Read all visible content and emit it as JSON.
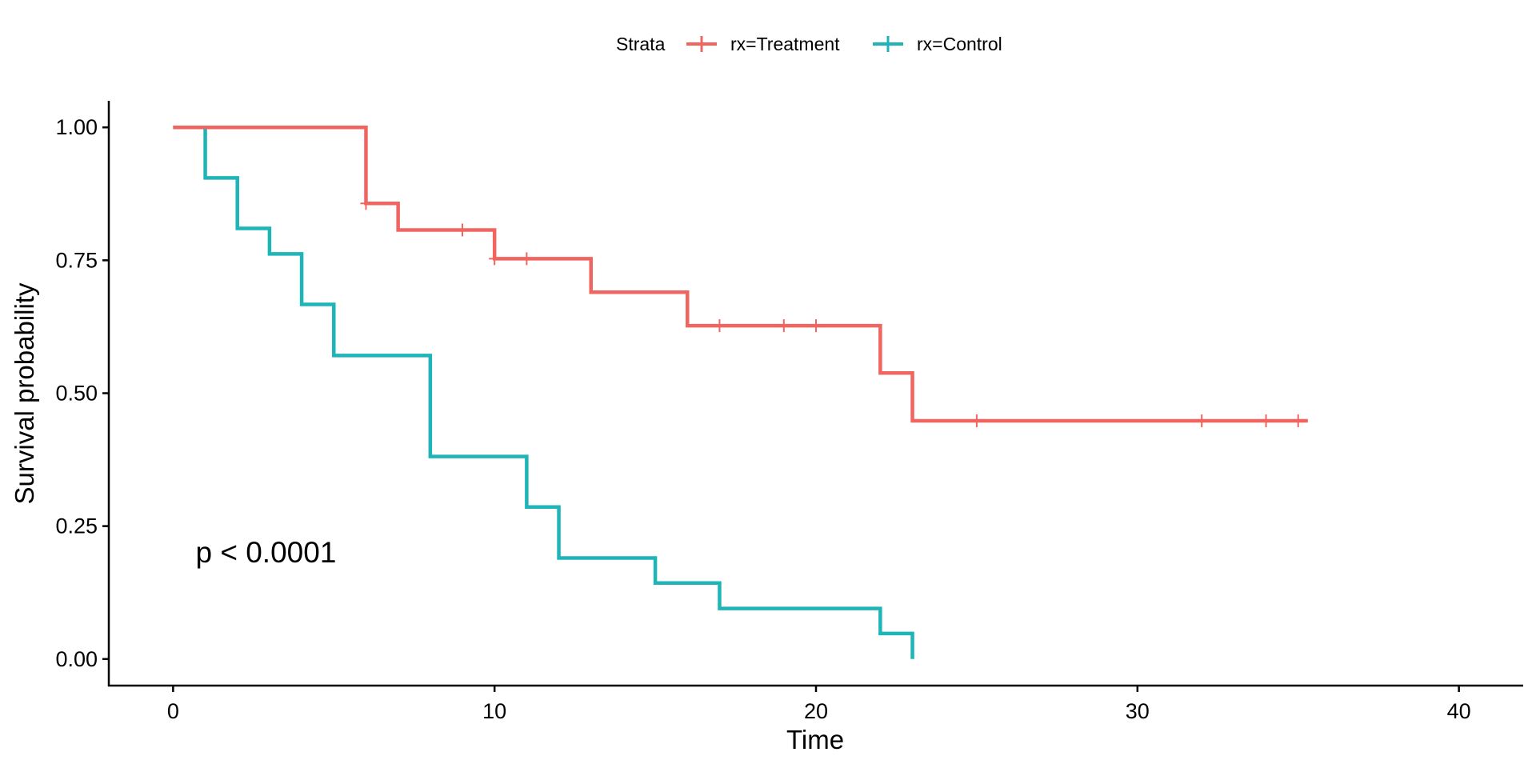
{
  "chart_data": {
    "type": "line",
    "subtype": "kaplan-meier step",
    "xlabel": "Time",
    "ylabel": "Survival probability",
    "xlim": [
      -2,
      42
    ],
    "ylim": [
      -0.05,
      1.05
    ],
    "x_ticks": [
      "0",
      "10",
      "20",
      "30",
      "40"
    ],
    "x_tick_values": [
      0,
      10,
      20,
      30,
      40
    ],
    "y_ticks": [
      "0.00",
      "0.25",
      "0.50",
      "0.75",
      "1.00"
    ],
    "y_tick_values": [
      0,
      0.25,
      0.5,
      0.75,
      1.0
    ],
    "grid": false,
    "legend": {
      "position": "top",
      "title": "Strata",
      "entries": [
        "rx=Treatment",
        "rx=Control"
      ]
    },
    "annotation": {
      "text": "p < 0.0001",
      "x": 0.7,
      "y": 0.2
    },
    "series": [
      {
        "name": "rx=Treatment",
        "color": "#F06560",
        "steps": [
          [
            0,
            1.0
          ],
          [
            6,
            0.857
          ],
          [
            7,
            0.807
          ],
          [
            10,
            0.753
          ],
          [
            13,
            0.69
          ],
          [
            16,
            0.627
          ],
          [
            22,
            0.538
          ],
          [
            23,
            0.448
          ],
          [
            35.3,
            0.448
          ]
        ],
        "censor_times": [
          6,
          9,
          10,
          11,
          17,
          19,
          20,
          25,
          32,
          34,
          35
        ]
      },
      {
        "name": "rx=Control",
        "color": "#1EB5B8",
        "steps": [
          [
            0,
            1.0
          ],
          [
            1,
            0.905
          ],
          [
            2,
            0.81
          ],
          [
            3,
            0.762
          ],
          [
            4,
            0.667
          ],
          [
            5,
            0.571
          ],
          [
            8,
            0.381
          ],
          [
            11,
            0.286
          ],
          [
            12,
            0.19
          ],
          [
            15,
            0.143
          ],
          [
            17,
            0.095
          ],
          [
            22,
            0.048
          ],
          [
            23,
            0.0
          ]
        ],
        "censor_times": []
      }
    ]
  }
}
